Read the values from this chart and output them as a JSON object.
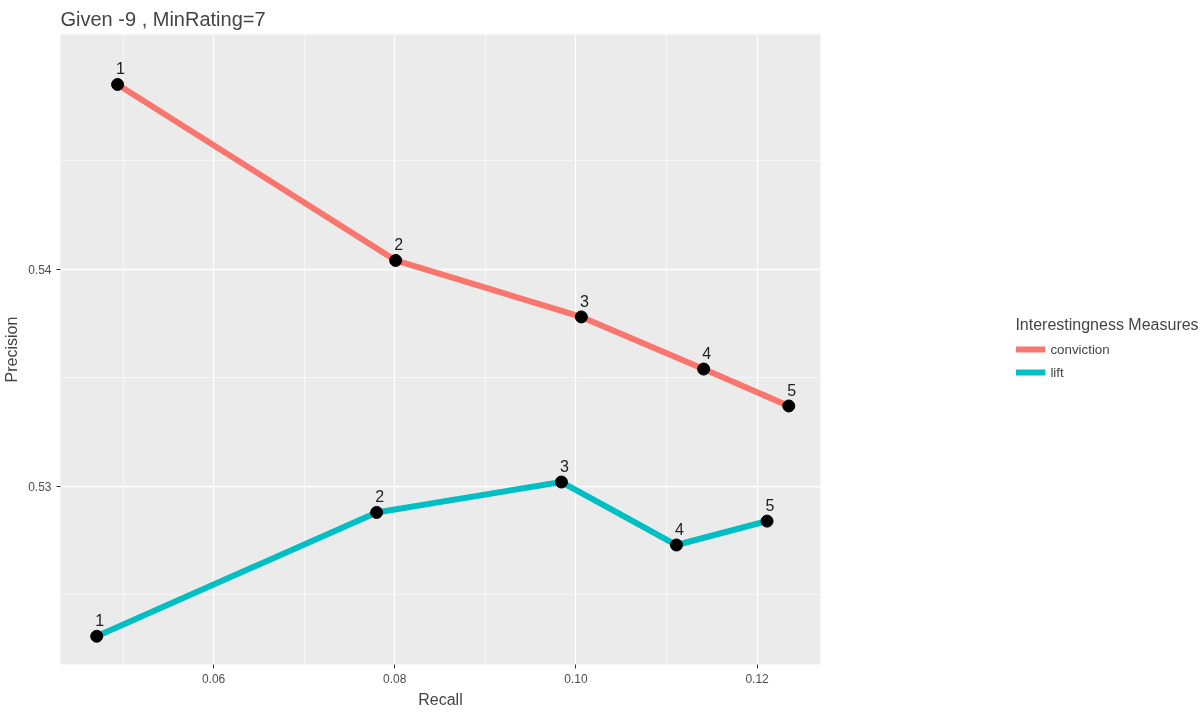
{
  "chart_data": {
    "type": "line",
    "title": "Given -9 , MinRating=7",
    "xlabel": "Recall",
    "ylabel": "Precision",
    "legend_title": "Interestingness Measures",
    "legend": "right",
    "grid": true,
    "marker": "circle",
    "line_style": "solid",
    "xlim": [
      0.0431,
      0.127
    ],
    "ylim": [
      0.5218,
      0.5508
    ],
    "xticks": [
      {
        "value": 0.06,
        "label": "0.06"
      },
      {
        "value": 0.08,
        "label": "0.08"
      },
      {
        "value": 0.1,
        "label": "0.10"
      },
      {
        "value": 0.12,
        "label": "0.12"
      }
    ],
    "yticks": [
      {
        "value": 0.53,
        "label": "0.53"
      },
      {
        "value": 0.54,
        "label": "0.54"
      }
    ],
    "series": [
      {
        "name": "conviction",
        "color": "#f8766d",
        "x": [
          0.0494,
          0.0801,
          0.1006,
          0.1141,
          0.1235
        ],
        "values": [
          0.5485,
          0.5404,
          0.5378,
          0.5354,
          0.5337
        ]
      },
      {
        "name": "lift",
        "color": "#00bfc4",
        "x": [
          0.0471,
          0.078,
          0.0984,
          0.1111,
          0.1211
        ],
        "values": [
          0.5231,
          0.5288,
          0.5302,
          0.5273,
          0.5284
        ]
      }
    ],
    "annotations": [
      {
        "text": "1",
        "x": 0.0494,
        "y": 0.5485
      },
      {
        "text": "2",
        "x": 0.0801,
        "y": 0.5404
      },
      {
        "text": "3",
        "x": 0.1006,
        "y": 0.5378
      },
      {
        "text": "4",
        "x": 0.1141,
        "y": 0.5354
      },
      {
        "text": "5",
        "x": 0.1235,
        "y": 0.5337
      },
      {
        "text": "1",
        "x": 0.0471,
        "y": 0.5231
      },
      {
        "text": "2",
        "x": 0.078,
        "y": 0.5288
      },
      {
        "text": "3",
        "x": 0.0984,
        "y": 0.5302
      },
      {
        "text": "4",
        "x": 0.1111,
        "y": 0.5273
      },
      {
        "text": "5",
        "x": 0.1211,
        "y": 0.5284
      }
    ]
  }
}
